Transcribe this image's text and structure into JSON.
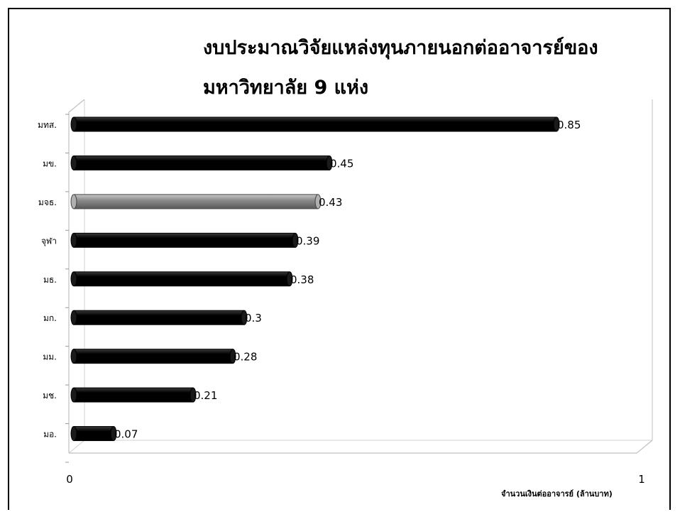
{
  "chart_data": {
    "type": "bar",
    "orientation": "horizontal",
    "title": [
      "งบประมาณวิจัยแหล่งทุนภายนอกต่ออาจารย์ของ",
      "มหาวิทยาลัย 9 แห่ง"
    ],
    "xlabel": "จำนวนเงินต่ออาจารย์ (ล้านบาท)",
    "ylabel": "",
    "categories": [
      "มทส.",
      "มข.",
      "มจธ.",
      "จุฬา",
      "มธ.",
      "มก.",
      "มม.",
      "มช.",
      "มอ."
    ],
    "values": [
      0.85,
      0.45,
      0.43,
      0.39,
      0.38,
      0.3,
      0.28,
      0.21,
      0.07
    ],
    "data_labels": [
      "0.85",
      "0.45",
      "0.43",
      "0.39",
      "0.38",
      "0.3",
      "0.28",
      "0.21",
      "0.07"
    ],
    "xlim": [
      0,
      1
    ],
    "xticks": [
      "0",
      "1"
    ],
    "highlight_category": "มจธ.",
    "colors": {
      "bar": "#000000",
      "highlight": "#8c8c8c"
    },
    "grid": false,
    "style": "3d-cylinder"
  }
}
